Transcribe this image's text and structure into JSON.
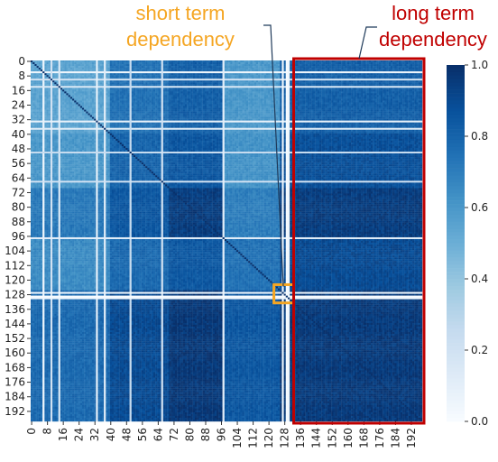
{
  "chart_data": {
    "type": "heatmap",
    "title": "",
    "xlabel": "",
    "ylabel": "",
    "x_tick_labels": [
      "0",
      "8",
      "16",
      "24",
      "32",
      "40",
      "48",
      "56",
      "64",
      "72",
      "80",
      "88",
      "96",
      "104",
      "112",
      "120",
      "128",
      "136",
      "144",
      "152",
      "160",
      "168",
      "176",
      "184",
      "192"
    ],
    "y_tick_labels": [
      "0",
      "8",
      "16",
      "24",
      "32",
      "40",
      "48",
      "56",
      "64",
      "72",
      "80",
      "88",
      "96",
      "104",
      "112",
      "120",
      "128",
      "136",
      "144",
      "152",
      "160",
      "168",
      "176",
      "184",
      "192"
    ],
    "size": 198,
    "value_range": [
      0.0,
      1.0
    ],
    "colormap": "Blues",
    "colorbar": {
      "ticks": [
        0.0,
        0.2,
        0.4,
        0.6,
        0.8,
        1.0
      ],
      "tick_labels": [
        "0.0",
        "0.2",
        "0.4",
        "0.6",
        "0.8",
        "1.0"
      ]
    },
    "blocks": [
      {
        "rows": [
          0,
          39
        ],
        "cols": [
          0,
          39
        ],
        "value": 0.55
      },
      {
        "rows": [
          0,
          39
        ],
        "cols": [
          40,
          69
        ],
        "value": 0.75
      },
      {
        "rows": [
          0,
          39
        ],
        "cols": [
          70,
          97
        ],
        "value": 0.82
      },
      {
        "rows": [
          0,
          39
        ],
        "cols": [
          98,
          125
        ],
        "value": 0.6
      },
      {
        "rows": [
          0,
          39
        ],
        "cols": [
          126,
          197
        ],
        "value": 0.82
      },
      {
        "rows": [
          40,
          69
        ],
        "cols": [
          0,
          39
        ],
        "value": 0.6
      },
      {
        "rows": [
          40,
          69
        ],
        "cols": [
          40,
          69
        ],
        "value": 0.8
      },
      {
        "rows": [
          40,
          69
        ],
        "cols": [
          70,
          97
        ],
        "value": 0.85
      },
      {
        "rows": [
          40,
          69
        ],
        "cols": [
          98,
          125
        ],
        "value": 0.62
      },
      {
        "rows": [
          40,
          69
        ],
        "cols": [
          126,
          197
        ],
        "value": 0.88
      },
      {
        "rows": [
          70,
          97
        ],
        "cols": [
          0,
          39
        ],
        "value": 0.72
      },
      {
        "rows": [
          70,
          97
        ],
        "cols": [
          40,
          69
        ],
        "value": 0.85
      },
      {
        "rows": [
          70,
          97
        ],
        "cols": [
          70,
          97
        ],
        "value": 0.95
      },
      {
        "rows": [
          70,
          97
        ],
        "cols": [
          98,
          125
        ],
        "value": 0.7
      },
      {
        "rows": [
          70,
          97
        ],
        "cols": [
          126,
          197
        ],
        "value": 0.95
      },
      {
        "rows": [
          98,
          125
        ],
        "cols": [
          0,
          39
        ],
        "value": 0.65
      },
      {
        "rows": [
          98,
          125
        ],
        "cols": [
          40,
          69
        ],
        "value": 0.78
      },
      {
        "rows": [
          98,
          125
        ],
        "cols": [
          70,
          97
        ],
        "value": 0.85
      },
      {
        "rows": [
          98,
          125
        ],
        "cols": [
          98,
          125
        ],
        "value": 0.75
      },
      {
        "rows": [
          98,
          125
        ],
        "cols": [
          126,
          197
        ],
        "value": 0.9
      },
      {
        "rows": [
          126,
          197
        ],
        "cols": [
          0,
          39
        ],
        "value": 0.78
      },
      {
        "rows": [
          126,
          197
        ],
        "cols": [
          40,
          69
        ],
        "value": 0.9
      },
      {
        "rows": [
          126,
          197
        ],
        "cols": [
          70,
          97
        ],
        "value": 0.97
      },
      {
        "rows": [
          126,
          197
        ],
        "cols": [
          98,
          125
        ],
        "value": 0.85
      },
      {
        "rows": [
          126,
          197
        ],
        "cols": [
          126,
          197
        ],
        "value": 0.96
      }
    ],
    "low_value_lines": [
      {
        "index": 6,
        "value": 0.05
      },
      {
        "index": 10,
        "value": 0.2
      },
      {
        "index": 14,
        "value": 0.15
      },
      {
        "index": 33,
        "value": 0.08
      },
      {
        "index": 37,
        "value": 0.12
      },
      {
        "index": 50,
        "value": 0.25
      },
      {
        "index": 66,
        "value": 0.2
      },
      {
        "index": 97,
        "value": 0.1
      },
      {
        "index": 127,
        "value": 0.05
      },
      {
        "index": 129,
        "value": 0.0
      },
      {
        "index": 130,
        "value": 0.05
      }
    ],
    "annotations": [
      {
        "label_lines": [
          "short term",
          "dependency"
        ],
        "color": "#f5a623",
        "target_rows": [
          123,
          133
        ],
        "target_cols": [
          123,
          133
        ]
      },
      {
        "label_lines": [
          "long term",
          "dependency"
        ],
        "color": "#c00000",
        "target_rows": [
          0,
          197
        ],
        "target_cols": [
          133,
          197
        ]
      }
    ]
  }
}
